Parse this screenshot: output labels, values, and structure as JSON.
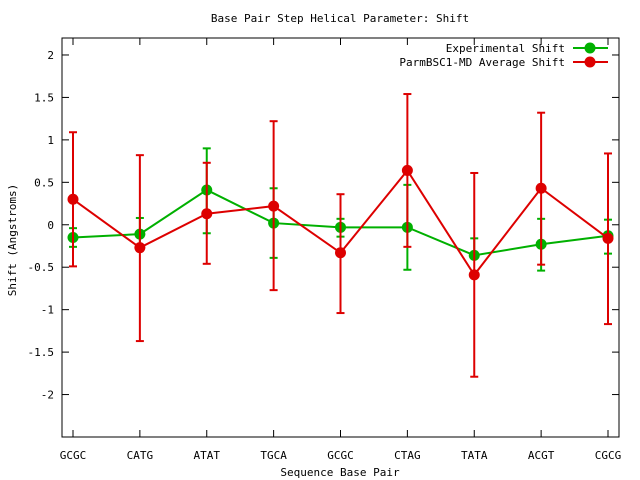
{
  "chart_data": {
    "type": "line",
    "title": "Base Pair Step Helical Parameter: Shift",
    "xlabel": "Sequence Base Pair",
    "ylabel": "Shift (Angstroms)",
    "categories": [
      "GCGC",
      "CATG",
      "ATAT",
      "TGCA",
      "GCGC",
      "CTAG",
      "TATA",
      "ACGT",
      "CGCG"
    ],
    "ylim": [
      -2.5,
      2.2
    ],
    "yticks": [
      2,
      1.5,
      1,
      0.5,
      0,
      -0.5,
      -1,
      -1.5,
      -2
    ],
    "ytick_labels": [
      "2",
      "1.5",
      "1",
      "0.5",
      "0",
      "-0.5",
      "-1",
      "-1.5",
      "-2"
    ],
    "grid": false,
    "legend_position": "top-right",
    "series": [
      {
        "name": "Experimental Shift",
        "color": "#00b000",
        "values": [
          -0.15,
          -0.11,
          0.41,
          0.02,
          -0.03,
          -0.03,
          -0.36,
          -0.23,
          -0.13
        ],
        "err_low": [
          -0.26,
          -0.3,
          -0.1,
          -0.39,
          -0.14,
          -0.53,
          -0.34,
          -0.54,
          -0.34
        ],
        "err_high": [
          -0.04,
          0.08,
          0.9,
          0.43,
          0.07,
          0.47,
          -0.16,
          0.07,
          0.06
        ]
      },
      {
        "name": "ParmBSC1-MD Average Shift",
        "color": "#dd0000",
        "values": [
          0.3,
          -0.27,
          0.13,
          0.22,
          -0.33,
          0.64,
          -0.59,
          0.43,
          -0.16
        ],
        "err_low": [
          -0.49,
          -1.37,
          -0.46,
          -0.77,
          -1.04,
          -0.26,
          -1.79,
          -0.47,
          -1.17
        ],
        "err_high": [
          1.09,
          0.82,
          0.73,
          1.22,
          0.36,
          1.54,
          0.61,
          1.32,
          0.84
        ]
      }
    ]
  }
}
